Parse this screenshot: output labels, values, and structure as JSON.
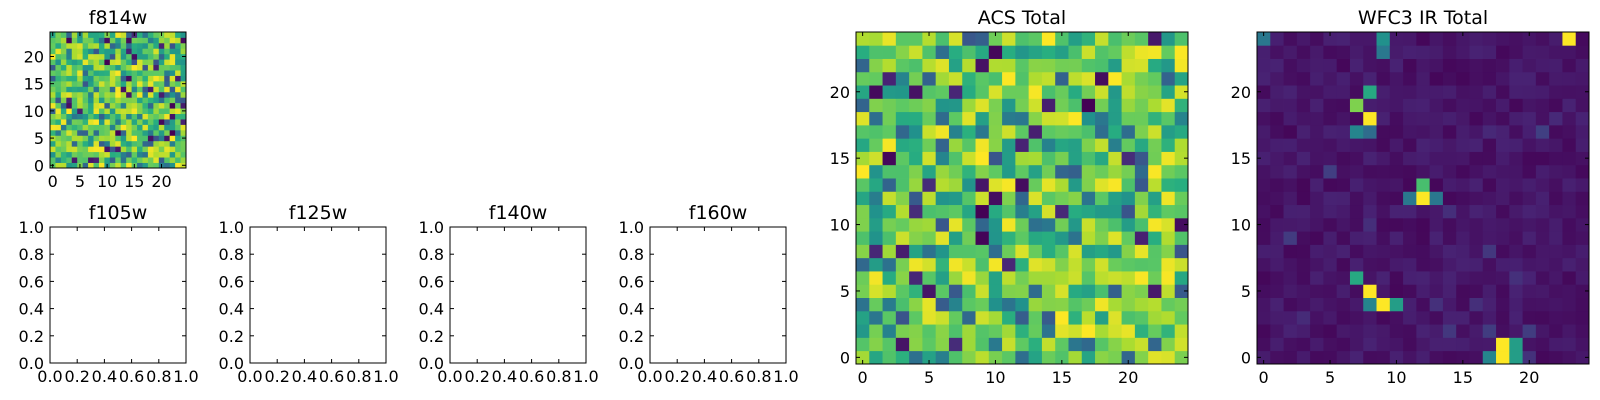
{
  "colormap": "viridis",
  "colors": [
    "#440154",
    "#3b528b",
    "#21918c",
    "#5ec962",
    "#fde725"
  ],
  "chart_data": [
    {
      "type": "heatmap",
      "title": "f814w",
      "xticks": [
        "0",
        "5",
        "10",
        "15",
        "20"
      ],
      "yticks": [
        "0",
        "5",
        "10",
        "15",
        "20"
      ],
      "xlim": [
        -0.5,
        24.5
      ],
      "ylim": [
        -0.5,
        24.5
      ],
      "grid": false,
      "pattern": "noise",
      "grid_size": 25
    },
    {
      "type": "empty",
      "title": "f105w",
      "xticks": [
        "0.0",
        "0.2",
        "0.4",
        "0.6",
        "0.8",
        "1.0"
      ],
      "yticks": [
        "0.0",
        "0.2",
        "0.4",
        "0.6",
        "0.8",
        "1.0"
      ],
      "xlim": [
        0,
        1
      ],
      "ylim": [
        0,
        1
      ]
    },
    {
      "type": "empty",
      "title": "f125w",
      "xticks": [
        "0.0",
        "0.2",
        "0.4",
        "0.6",
        "0.8",
        "1.0"
      ],
      "yticks": [
        "0.0",
        "0.2",
        "0.4",
        "0.6",
        "0.8",
        "1.0"
      ],
      "xlim": [
        0,
        1
      ],
      "ylim": [
        0,
        1
      ]
    },
    {
      "type": "empty",
      "title": "f140w",
      "xticks": [
        "0.0",
        "0.2",
        "0.4",
        "0.6",
        "0.8",
        "1.0"
      ],
      "yticks": [
        "0.0",
        "0.2",
        "0.4",
        "0.6",
        "0.8",
        "1.0"
      ],
      "xlim": [
        0,
        1
      ],
      "ylim": [
        0,
        1
      ]
    },
    {
      "type": "empty",
      "title": "f160w",
      "xticks": [
        "0.0",
        "0.2",
        "0.4",
        "0.6",
        "0.8",
        "1.0"
      ],
      "yticks": [
        "0.0",
        "0.2",
        "0.4",
        "0.6",
        "0.8",
        "1.0"
      ],
      "xlim": [
        0,
        1
      ],
      "ylim": [
        0,
        1
      ]
    },
    {
      "type": "heatmap",
      "title": "ACS Total",
      "xticks": [
        "0",
        "5",
        "10",
        "15",
        "20"
      ],
      "yticks": [
        "0",
        "5",
        "10",
        "15",
        "20"
      ],
      "xlim": [
        -0.5,
        24.5
      ],
      "ylim": [
        -0.5,
        24.5
      ],
      "grid": false,
      "pattern": "noise",
      "grid_size": 25
    },
    {
      "type": "heatmap",
      "title": "WFC3 IR Total",
      "xticks": [
        "0",
        "5",
        "10",
        "15",
        "20"
      ],
      "yticks": [
        "0",
        "5",
        "10",
        "15",
        "20"
      ],
      "xlim": [
        -0.5,
        24.5
      ],
      "ylim": [
        -0.5,
        24.5
      ],
      "grid": false,
      "pattern": "sources",
      "grid_size": 25,
      "bright_sources": [
        {
          "x": 8,
          "y": 18.5,
          "level": 1.0
        },
        {
          "x": 7,
          "y": 19.5,
          "level": 0.8
        },
        {
          "x": 8,
          "y": 20.5,
          "level": 0.6
        },
        {
          "x": 7,
          "y": 17.5,
          "level": 0.45
        },
        {
          "x": 8,
          "y": 17.5,
          "level": 0.35
        },
        {
          "x": 12,
          "y": 12,
          "level": 1.0
        },
        {
          "x": 12,
          "y": 13,
          "level": 0.7
        },
        {
          "x": 11,
          "y": 12,
          "level": 0.4
        },
        {
          "x": 13,
          "y": 12,
          "level": 0.4
        },
        {
          "x": 8,
          "y": 5,
          "level": 1.0
        },
        {
          "x": 9,
          "y": 4,
          "level": 1.0
        },
        {
          "x": 7,
          "y": 6,
          "level": 0.6
        },
        {
          "x": 10,
          "y": 4,
          "level": 0.55
        },
        {
          "x": 8,
          "y": 4,
          "level": 0.45
        },
        {
          "x": 18,
          "y": 0.5,
          "level": 1.0
        },
        {
          "x": 18,
          "y": 1,
          "level": 1.0
        },
        {
          "x": 19,
          "y": 0.5,
          "level": 0.55
        },
        {
          "x": 17,
          "y": 0.5,
          "level": 0.45
        },
        {
          "x": 19,
          "y": 1,
          "level": 0.55
        },
        {
          "x": 9,
          "y": 24,
          "level": 0.5
        },
        {
          "x": 9,
          "y": 23,
          "level": 0.4
        },
        {
          "x": 23,
          "y": 24,
          "level": 1.0
        },
        {
          "x": 0,
          "y": 24,
          "level": 0.4
        }
      ]
    }
  ]
}
